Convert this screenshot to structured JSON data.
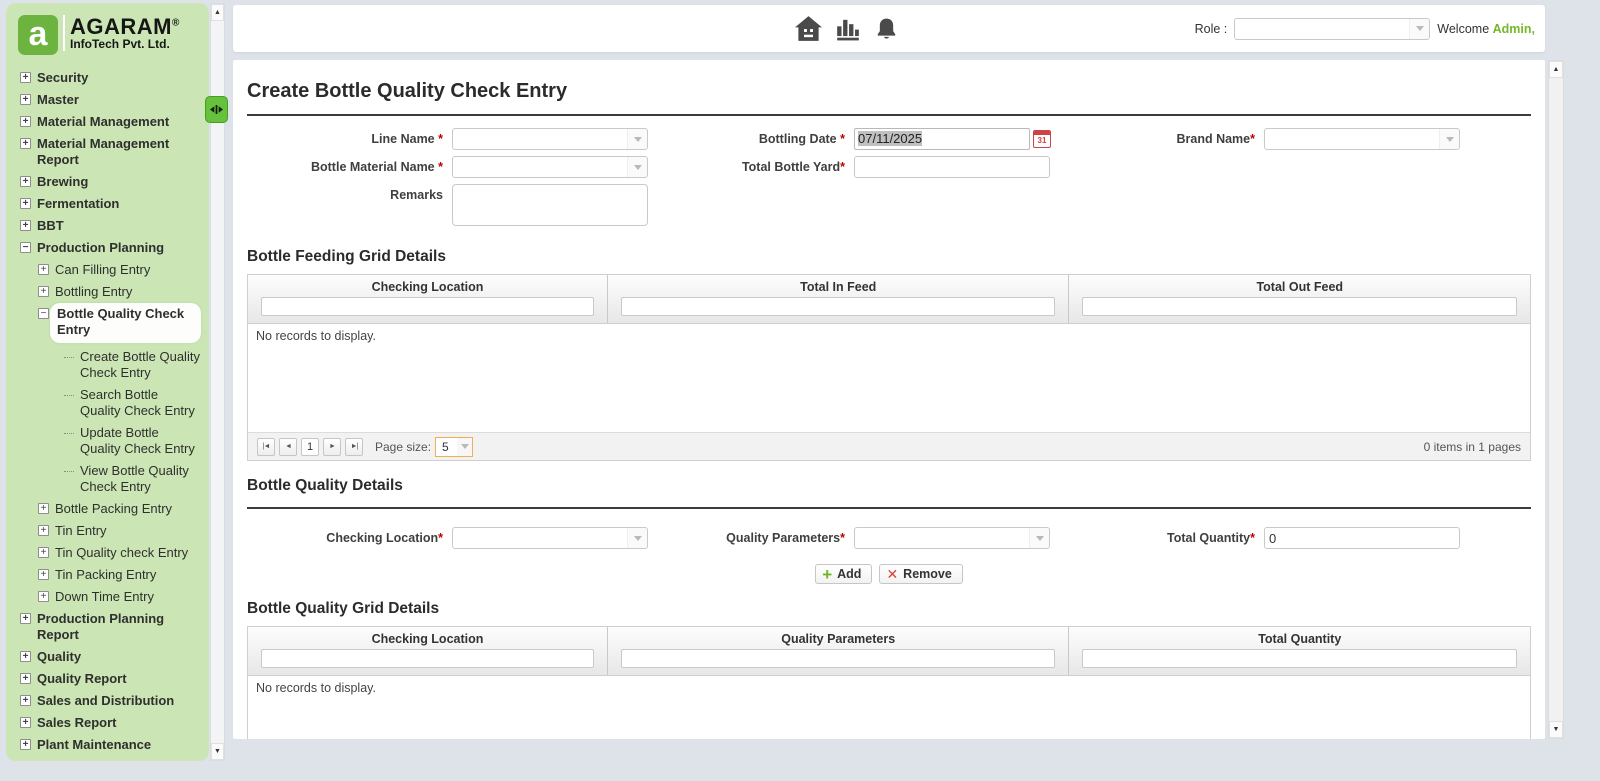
{
  "colors": {
    "sidebar_bg": "#cbe6b4",
    "brand_green": "#76b82a",
    "required_red": "#c00000",
    "page_size_border": "#efaf4e",
    "icon_gray": "#4a4a4a"
  },
  "misc": {
    "required_mark": "*",
    "up_arrow": "▲",
    "down_arrow": "▼"
  },
  "logo": {
    "mark": "a",
    "brand": "AGARAM",
    "registered": "®",
    "subtitle": "InfoTech Pvt. Ltd."
  },
  "sidebar": {
    "items": [
      {
        "label": "Security",
        "level": 0,
        "expander": "plus"
      },
      {
        "label": "Master",
        "level": 0,
        "expander": "plus"
      },
      {
        "label": "Material Management",
        "level": 0,
        "expander": "plus"
      },
      {
        "label": "Material Management Report",
        "level": 0,
        "expander": "plus"
      },
      {
        "label": "Brewing",
        "level": 0,
        "expander": "plus"
      },
      {
        "label": "Fermentation",
        "level": 0,
        "expander": "plus"
      },
      {
        "label": "BBT",
        "level": 0,
        "expander": "plus"
      },
      {
        "label": "Production Planning",
        "level": 0,
        "expander": "minus"
      },
      {
        "label": "Can Filling Entry",
        "level": 1,
        "expander": "plus"
      },
      {
        "label": "Bottling Entry",
        "level": 1,
        "expander": "plus"
      },
      {
        "label": "Bottle Quality Check Entry",
        "level": 1,
        "expander": "minus",
        "selected": true
      },
      {
        "label": "Create Bottle Quality Check Entry",
        "level": 2,
        "expander": "none"
      },
      {
        "label": "Search Bottle Quality Check Entry",
        "level": 2,
        "expander": "none"
      },
      {
        "label": "Update Bottle Quality Check Entry",
        "level": 2,
        "expander": "none"
      },
      {
        "label": "View Bottle Quality Check Entry",
        "level": 2,
        "expander": "none"
      },
      {
        "label": "Bottle Packing Entry",
        "level": 1,
        "expander": "plus"
      },
      {
        "label": "Tin Entry",
        "level": 1,
        "expander": "plus"
      },
      {
        "label": "Tin Quality check Entry",
        "level": 1,
        "expander": "plus"
      },
      {
        "label": "Tin Packing Entry",
        "level": 1,
        "expander": "plus"
      },
      {
        "label": "Down Time Entry",
        "level": 1,
        "expander": "plus"
      },
      {
        "label": "Production Planning Report",
        "level": 0,
        "expander": "plus"
      },
      {
        "label": "Quality",
        "level": 0,
        "expander": "plus"
      },
      {
        "label": "Quality Report",
        "level": 0,
        "expander": "plus"
      },
      {
        "label": "Sales and Distribution",
        "level": 0,
        "expander": "plus"
      },
      {
        "label": "Sales Report",
        "level": 0,
        "expander": "plus"
      },
      {
        "label": "Plant Maintenance",
        "level": 0,
        "expander": "plus"
      }
    ]
  },
  "header": {
    "role_label": "Role :",
    "welcome_text": "Welcome",
    "welcome_user": "Admin,"
  },
  "page": {
    "title": "Create Bottle Quality Check Entry"
  },
  "form": {
    "line_name_label": "Line Name",
    "bottle_material_label": "Bottle Material Name",
    "remarks_label": "Remarks",
    "bottling_date_label": "Bottling Date",
    "bottling_date_value": "07/11/2025",
    "calendar_icon_text": "31",
    "total_bottle_yard_label": "Total Bottle Yard",
    "brand_name_label": "Brand Name"
  },
  "feeding_grid": {
    "title": "Bottle Feeding Grid Details",
    "columns": [
      "Checking Location",
      "Total In Feed",
      "Total Out Feed"
    ],
    "empty_text": "No records to display.",
    "pager": {
      "first": "|◄",
      "prev": "◄",
      "page": "1",
      "next": "►",
      "last": "►|",
      "page_size_label": "Page size:",
      "page_size_value": "5",
      "summary": "0 items in 1 pages"
    }
  },
  "quality_details": {
    "title": "Bottle Quality Details",
    "checking_location_label": "Checking Location",
    "quality_parameters_label": "Quality Parameters",
    "total_quantity_label": "Total Quantity",
    "total_quantity_value": "0",
    "plus_glyph": "+",
    "x_glyph": "✕",
    "add_label": "Add",
    "remove_label": "Remove"
  },
  "quality_grid": {
    "title": "Bottle Quality Grid Details",
    "columns": [
      "Checking Location",
      "Quality Parameters",
      "Total Quantity"
    ],
    "empty_text": "No records to display."
  }
}
